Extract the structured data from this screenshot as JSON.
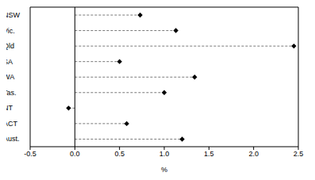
{
  "chart_data": {
    "type": "dot",
    "orientation": "horizontal",
    "categories": [
      "NSW",
      "Vic.",
      "Qld",
      "SA",
      "WA",
      "Tas.",
      "NT",
      "ACT",
      "Aust."
    ],
    "values": [
      0.73,
      1.13,
      2.45,
      0.5,
      1.34,
      1.0,
      -0.07,
      0.58,
      1.2
    ],
    "color": "#000000",
    "marker": "diamond",
    "line_style": "dashed",
    "xlabel": "%",
    "xlim": [
      -0.5,
      2.5
    ],
    "xticks": [
      -0.5,
      {
        "value": 0,
        "label": "0.0"
      },
      0.5,
      {
        "value": 1,
        "label": "1.0"
      },
      1.5,
      {
        "value": 2,
        "label": "2.0"
      },
      2.5
    ]
  }
}
